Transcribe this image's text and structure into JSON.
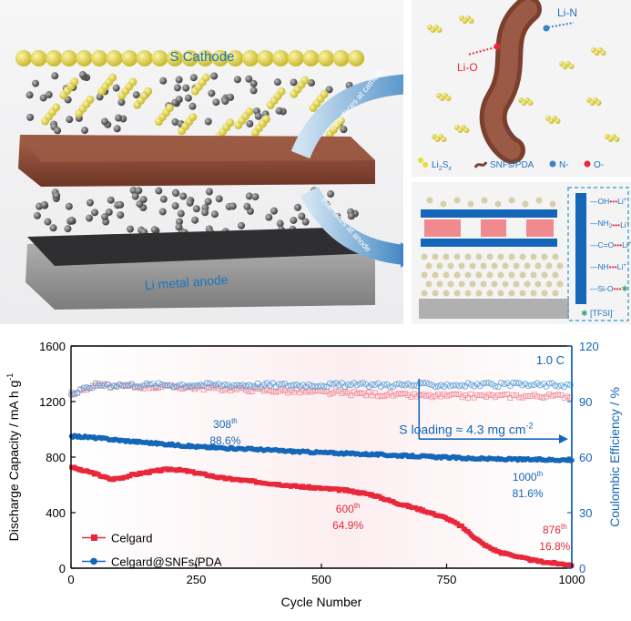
{
  "scheme": {
    "cathode_label": "S Cathode",
    "anode_label": "Li metal anode",
    "arrow_cathode_label": "Interfaces at cathode",
    "arrow_anode_label": "Interfaces at anode",
    "colors": {
      "sulfur": "#e6dc3a",
      "separator": "#8a4a35",
      "anode": "#8d8d8d",
      "arrow": "#4f8fc4"
    }
  },
  "cathode_inset": {
    "bond_li_n": "Li-N",
    "bond_li_o": "Li-O",
    "legend": {
      "polysulfide_main": "Li",
      "polysulfide_sub1": "2",
      "polysulfide_s": "S",
      "polysulfide_sub2": "x",
      "fiber": "SNFs/PDA",
      "n_atom": "N-",
      "o_atom": "O-"
    }
  },
  "anode_inset": {
    "groups": [
      {
        "left": "OH",
        "right": "Li",
        "sup": "+"
      },
      {
        "left": "NH",
        "sub": "2",
        "right": "Li",
        "sup": "+"
      },
      {
        "left": "C=O",
        "right": "Li",
        "sup": "+"
      },
      {
        "left": "NH",
        "right": "Li",
        "sup": "+"
      },
      {
        "left": "Si-O",
        "right": "",
        "sup": ""
      }
    ],
    "tfsi_label": "[TFSI]",
    "tfsi_sup": "-"
  },
  "chart_data": {
    "type": "scatter",
    "xlabel": "Cycle Number",
    "ylabel_left": "Discharge Capacity / mA h g",
    "ylabel_left_sup": "-1",
    "ylabel_right": "Coulombic Efficiency / %",
    "xlim": [
      0,
      1000
    ],
    "ylim_left": [
      0,
      1600
    ],
    "ylim_right": [
      0,
      120
    ],
    "x_ticks": [
      "0",
      "250",
      "500",
      "750",
      "1000"
    ],
    "y_left_ticks": [
      "0",
      "400",
      "800",
      "1200",
      "1600"
    ],
    "y_right_ticks": [
      "0",
      "30",
      "60",
      "90",
      "120"
    ],
    "rate_label": "1.0 C",
    "loading_label": "S loading ≈ 4.3 mg cm",
    "loading_sup": "-2",
    "legend_position": "bottom-left",
    "series": [
      {
        "name": "Celgard",
        "axis": "left",
        "color": "#e8283a",
        "capacity_points": [
          [
            1,
            730
          ],
          [
            20,
            705
          ],
          [
            40,
            690
          ],
          [
            60,
            665
          ],
          [
            80,
            640
          ],
          [
            100,
            650
          ],
          [
            120,
            670
          ],
          [
            150,
            690
          ],
          [
            180,
            705
          ],
          [
            200,
            715
          ],
          [
            230,
            700
          ],
          [
            260,
            680
          ],
          [
            300,
            650
          ],
          [
            350,
            630
          ],
          [
            400,
            610
          ],
          [
            450,
            590
          ],
          [
            500,
            575
          ],
          [
            550,
            560
          ],
          [
            600,
            530
          ],
          [
            650,
            470
          ],
          [
            700,
            420
          ],
          [
            750,
            360
          ],
          [
            780,
            300
          ],
          [
            800,
            240
          ],
          [
            820,
            180
          ],
          [
            840,
            140
          ],
          [
            860,
            110
          ],
          [
            876,
            100
          ],
          [
            900,
            75
          ],
          [
            925,
            55
          ],
          [
            950,
            42
          ],
          [
            975,
            32
          ],
          [
            1000,
            25
          ]
        ],
        "ce_points": [
          [
            1,
            94
          ],
          [
            50,
            99
          ],
          [
            100,
            98
          ],
          [
            200,
            98
          ],
          [
            300,
            97
          ],
          [
            400,
            96
          ],
          [
            500,
            95
          ],
          [
            600,
            94
          ],
          [
            700,
            93
          ],
          [
            800,
            93
          ],
          [
            900,
            93
          ],
          [
            1000,
            93
          ]
        ]
      },
      {
        "name": "Celgard@SNFs/PDA",
        "axis": "left",
        "color": "#1466b8",
        "capacity_points": [
          [
            1,
            950
          ],
          [
            30,
            945
          ],
          [
            60,
            935
          ],
          [
            100,
            920
          ],
          [
            150,
            905
          ],
          [
            200,
            890
          ],
          [
            250,
            875
          ],
          [
            308,
            865
          ],
          [
            350,
            860
          ],
          [
            400,
            850
          ],
          [
            450,
            840
          ],
          [
            500,
            833
          ],
          [
            550,
            826
          ],
          [
            600,
            820
          ],
          [
            650,
            812
          ],
          [
            700,
            805
          ],
          [
            750,
            798
          ],
          [
            800,
            790
          ],
          [
            850,
            786
          ],
          [
            900,
            783
          ],
          [
            950,
            781
          ],
          [
            1000,
            780
          ]
        ],
        "ce_points": [
          [
            1,
            94
          ],
          [
            50,
            99
          ],
          [
            100,
            99
          ],
          [
            200,
            99
          ],
          [
            300,
            99
          ],
          [
            400,
            99
          ],
          [
            500,
            99
          ],
          [
            600,
            99
          ],
          [
            700,
            99
          ],
          [
            800,
            99
          ],
          [
            900,
            99
          ],
          [
            1000,
            99
          ]
        ]
      }
    ],
    "annotations": [
      {
        "cycle": "308",
        "sup": "th",
        "value": "88.6%",
        "color": "#1466b8"
      },
      {
        "cycle": "1000",
        "sup": "th",
        "value": "81.6%",
        "color": "#1466b8"
      },
      {
        "cycle": "600",
        "sup": "th",
        "value": "64.9%",
        "color": "#e8283a"
      },
      {
        "cycle": "876",
        "sup": "th",
        "value": "16.8%",
        "color": "#e8283a"
      }
    ]
  }
}
